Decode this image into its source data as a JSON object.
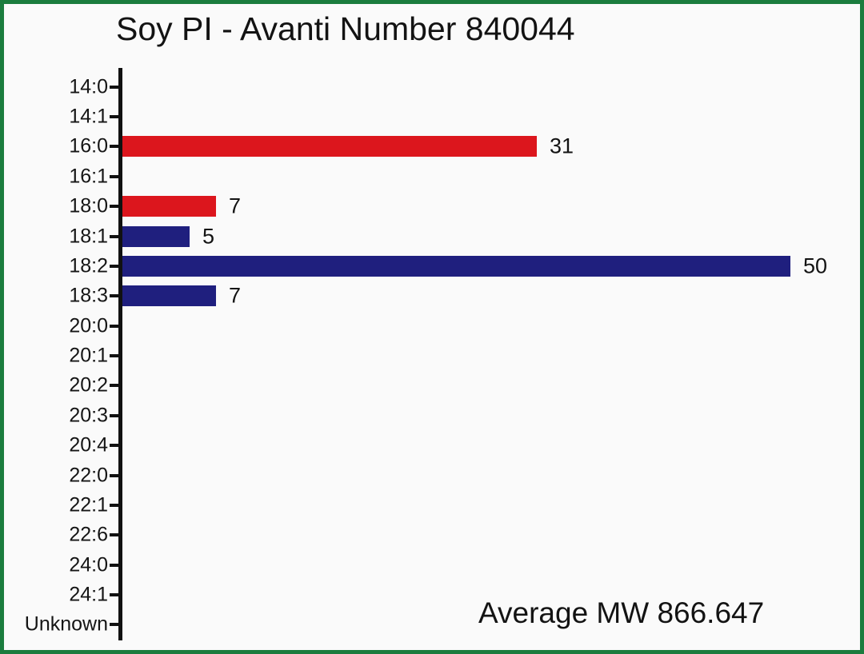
{
  "frame": {
    "border_color": "#1b7c3e",
    "background_color": "#fafafa"
  },
  "chart_data": {
    "type": "bar",
    "orientation": "horizontal",
    "title": "Soy PI - Avanti Number 840044",
    "categories": [
      "14:0",
      "14:1",
      "16:0",
      "16:1",
      "18:0",
      "18:1",
      "18:2",
      "18:3",
      "20:0",
      "20:1",
      "20:2",
      "20:3",
      "20:4",
      "22:0",
      "22:1",
      "22:6",
      "24:0",
      "24:1",
      "Unknown"
    ],
    "values": [
      0,
      0,
      31,
      0,
      7,
      5,
      50,
      7,
      0,
      0,
      0,
      0,
      0,
      0,
      0,
      0,
      0,
      0,
      0
    ],
    "bar_colors": [
      null,
      null,
      "#dc161d",
      null,
      "#dc161d",
      "#1f1f7e",
      "#1f1f7e",
      "#1f1f7e",
      null,
      null,
      null,
      null,
      null,
      null,
      null,
      null,
      null,
      null,
      null
    ],
    "palette": {
      "saturated_red": "#dc161d",
      "unsaturated_blue": "#1f1f7e"
    },
    "xlim": [
      0,
      55.5
    ],
    "xlabel": "",
    "ylabel": "",
    "grid": false,
    "legend": false,
    "axis_color": "#111111",
    "annotation": "Average MW 866.647"
  }
}
